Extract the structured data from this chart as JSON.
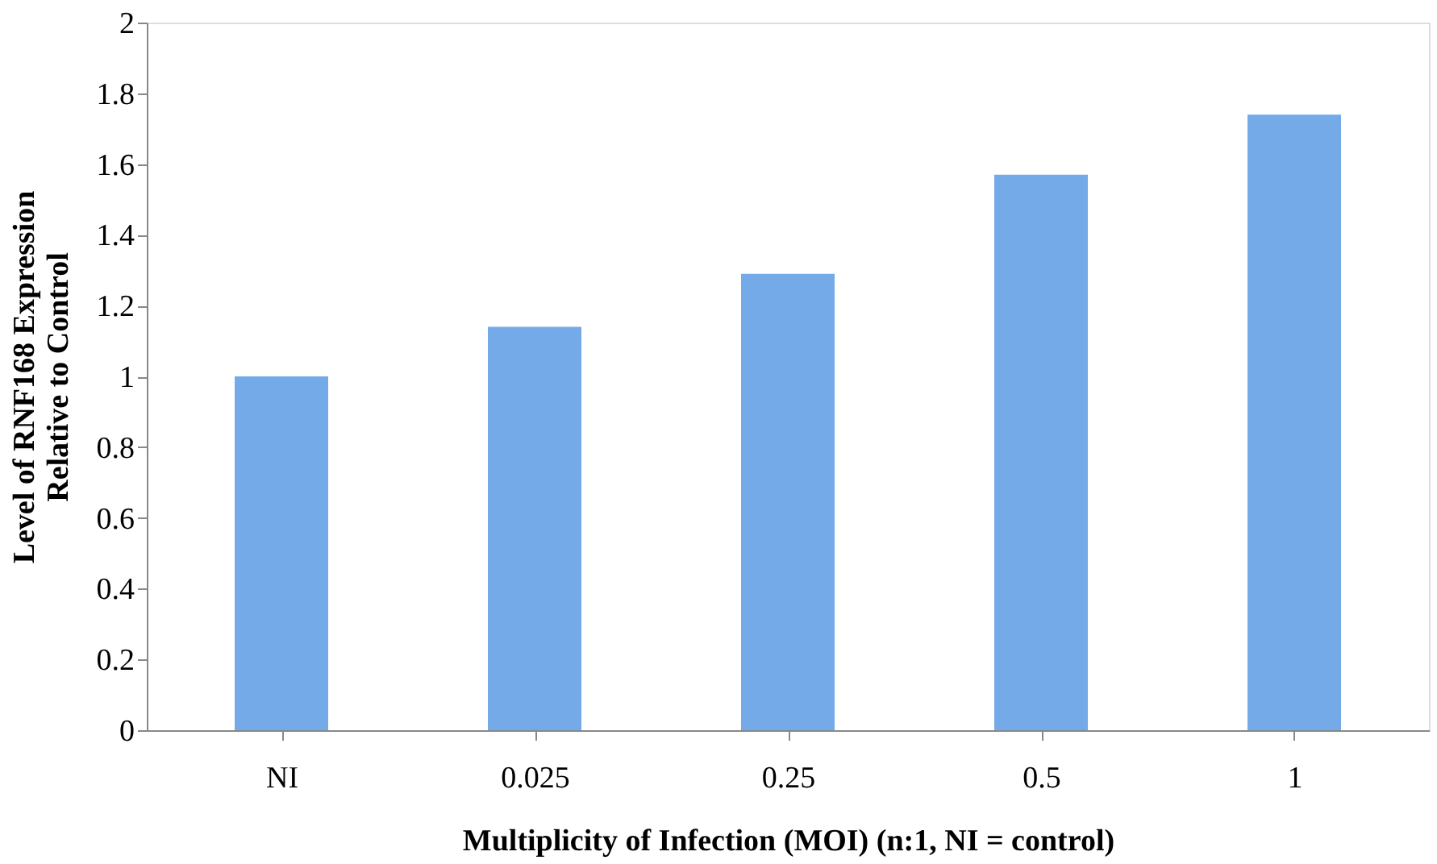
{
  "chart_data": {
    "type": "bar",
    "categories": [
      "NI",
      "0.025",
      "0.25",
      "0.5",
      "1"
    ],
    "values": [
      1.0,
      1.14,
      1.29,
      1.57,
      1.74
    ],
    "color": "#74aae8",
    "xlabel": "Multiplicity of Infection (MOI) (n:1, NI = control)",
    "ylabel": "Level of RNF168 Expression Relative to Control",
    "ylim": [
      0,
      2
    ],
    "yticks": [
      0,
      0.2,
      0.4,
      0.6,
      0.8,
      1,
      1.2,
      1.4,
      1.6,
      1.8,
      2
    ],
    "grid": false
  }
}
